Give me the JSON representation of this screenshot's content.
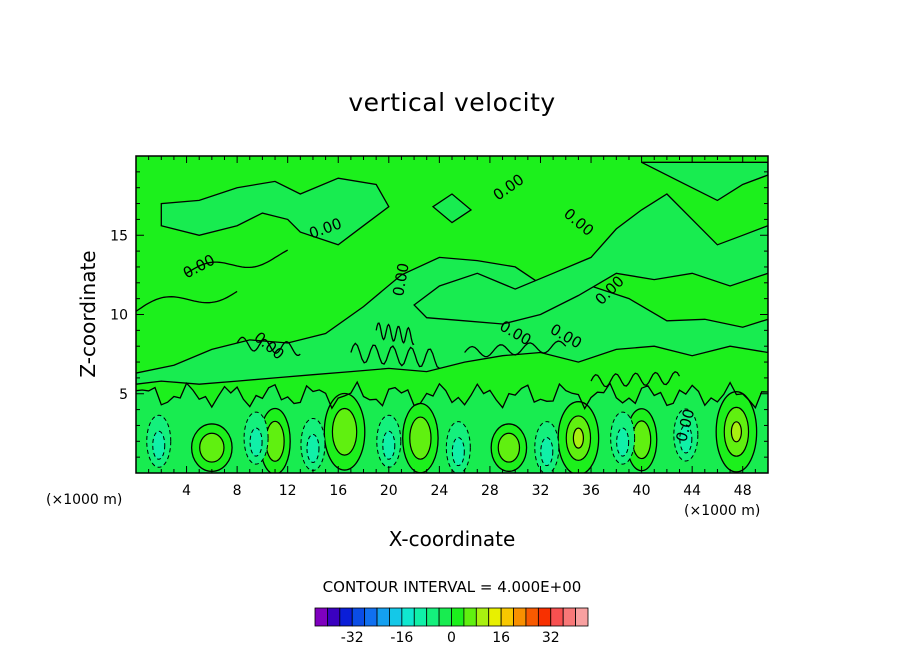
{
  "chart_data": {
    "type": "heatmap",
    "title": "vertical velocity",
    "xlabel": "X-coordinate",
    "ylabel": "Z-coordinate",
    "x_unit_left": "(×1000 m)",
    "x_unit_right": "(×1000 m)",
    "xlim": [
      0,
      50
    ],
    "ylim": [
      0,
      20
    ],
    "x_ticks": [
      4,
      8,
      12,
      16,
      20,
      24,
      28,
      32,
      36,
      40,
      44,
      48
    ],
    "y_ticks": [
      5,
      10,
      15
    ],
    "contour_label": "0.00",
    "contour_interval_text": "CONTOUR INTERVAL = 4.000E+00",
    "colorbar": {
      "colors": [
        "#7f00bf",
        "#3a00c0",
        "#0a1ed8",
        "#0a4de6",
        "#1070f0",
        "#14a0f0",
        "#14c8e8",
        "#10e8d0",
        "#10f0a8",
        "#14f07c",
        "#18ec50",
        "#1cf01c",
        "#60f010",
        "#a8f010",
        "#e8f000",
        "#f8c800",
        "#f89000",
        "#f85a00",
        "#f83000",
        "#f85050",
        "#f87878",
        "#f8a0a0"
      ],
      "tick_labels": [
        "-32",
        "-16",
        "0",
        "16",
        "32"
      ],
      "tick_values": [
        -32,
        -16,
        0,
        16,
        32
      ]
    },
    "colors": {
      "zero_band": "#1cf01c",
      "low_positive": "#60f010",
      "high_positive": "#a8f010",
      "low_negative": "#18ec50",
      "mid_negative": "#14f07c",
      "deep_negative": "#10f0a8"
    }
  }
}
